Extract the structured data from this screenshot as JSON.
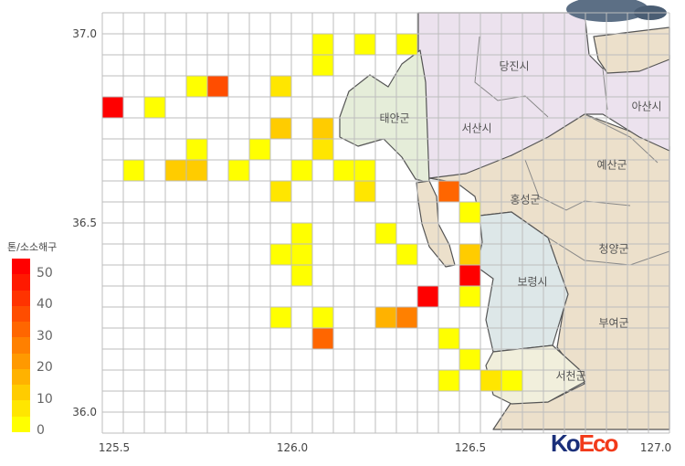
{
  "legend": {
    "title": "톤/소소해구",
    "ticks": [
      "0",
      "10",
      "20",
      "30",
      "40",
      "50"
    ],
    "min": 0,
    "max": 55,
    "step": 5,
    "color_low": "#ffff00",
    "color_high": "#ff0000"
  },
  "axes": {
    "x_ticks": [
      "125.5",
      "126.0",
      "126.5",
      "127.0"
    ],
    "y_ticks": [
      "37.0",
      "36.5",
      "36.0"
    ]
  },
  "regions": [
    "당진시",
    "서산시",
    "아산시",
    "태안군",
    "예산군",
    "홍성군",
    "청양군",
    "보령시",
    "부여군",
    "서천군"
  ],
  "logo": {
    "text_a": "Ko",
    "text_b": "Eco"
  },
  "colors": {
    "taean": "#e5edd9",
    "seosan": "#ece2ee",
    "tan": "#ece0cb",
    "boryeong": "#dde7e8",
    "seocheon": "#f1efdc",
    "grid": "#bdbdbd"
  },
  "chart_data": {
    "type": "heatmap",
    "title": "",
    "unit": "톤/소소해구",
    "xlim": [
      125.5,
      127.0
    ],
    "ylim": [
      36.0,
      37.0
    ],
    "cells_note": "grid_col / grid_row index of catch cells (col 0 = westmost, row 0 = northmost), value in tons",
    "cells": [
      {
        "c": 10,
        "r": 1,
        "v": 4
      },
      {
        "c": 10,
        "r": 2,
        "v": 4
      },
      {
        "c": 12,
        "r": 1,
        "v": 3
      },
      {
        "c": 14,
        "r": 1,
        "v": 4
      },
      {
        "c": 4,
        "r": 3,
        "v": 4
      },
      {
        "c": 5,
        "r": 3,
        "v": 37
      },
      {
        "c": 8,
        "r": 3,
        "v": 9
      },
      {
        "c": 0,
        "r": 4,
        "v": 52
      },
      {
        "c": 2,
        "r": 4,
        "v": 3
      },
      {
        "c": 8,
        "r": 5,
        "v": 13
      },
      {
        "c": 10,
        "r": 5,
        "v": 14
      },
      {
        "c": 10,
        "r": 6,
        "v": 9
      },
      {
        "c": 4,
        "r": 6,
        "v": 3
      },
      {
        "c": 7,
        "r": 6,
        "v": 3
      },
      {
        "c": 1,
        "r": 7,
        "v": 4
      },
      {
        "c": 3,
        "r": 7,
        "v": 12
      },
      {
        "c": 4,
        "r": 7,
        "v": 14
      },
      {
        "c": 6,
        "r": 7,
        "v": 3
      },
      {
        "c": 9,
        "r": 7,
        "v": 3
      },
      {
        "c": 11,
        "r": 7,
        "v": 4
      },
      {
        "c": 12,
        "r": 7,
        "v": 4
      },
      {
        "c": 8,
        "r": 8,
        "v": 8
      },
      {
        "c": 12,
        "r": 8,
        "v": 8
      },
      {
        "c": 16,
        "r": 8,
        "v": 32
      },
      {
        "c": 17,
        "r": 9,
        "v": 3
      },
      {
        "c": 9,
        "r": 10,
        "v": 3
      },
      {
        "c": 13,
        "r": 10,
        "v": 3
      },
      {
        "c": 8,
        "r": 11,
        "v": 3
      },
      {
        "c": 9,
        "r": 11,
        "v": 3
      },
      {
        "c": 14,
        "r": 11,
        "v": 3
      },
      {
        "c": 17,
        "r": 11,
        "v": 14
      },
      {
        "c": 9,
        "r": 12,
        "v": 3
      },
      {
        "c": 17,
        "r": 12,
        "v": 52
      },
      {
        "c": 15,
        "r": 13,
        "v": 50
      },
      {
        "c": 17,
        "r": 13,
        "v": 4
      },
      {
        "c": 8,
        "r": 14,
        "v": 3
      },
      {
        "c": 10,
        "r": 14,
        "v": 3
      },
      {
        "c": 13,
        "r": 14,
        "v": 17
      },
      {
        "c": 14,
        "r": 14,
        "v": 27
      },
      {
        "c": 10,
        "r": 15,
        "v": 32
      },
      {
        "c": 16,
        "r": 15,
        "v": 4
      },
      {
        "c": 17,
        "r": 16,
        "v": 3
      },
      {
        "c": 16,
        "r": 17,
        "v": 3
      },
      {
        "c": 18,
        "r": 17,
        "v": 8
      },
      {
        "c": 19,
        "r": 17,
        "v": 3
      }
    ]
  }
}
